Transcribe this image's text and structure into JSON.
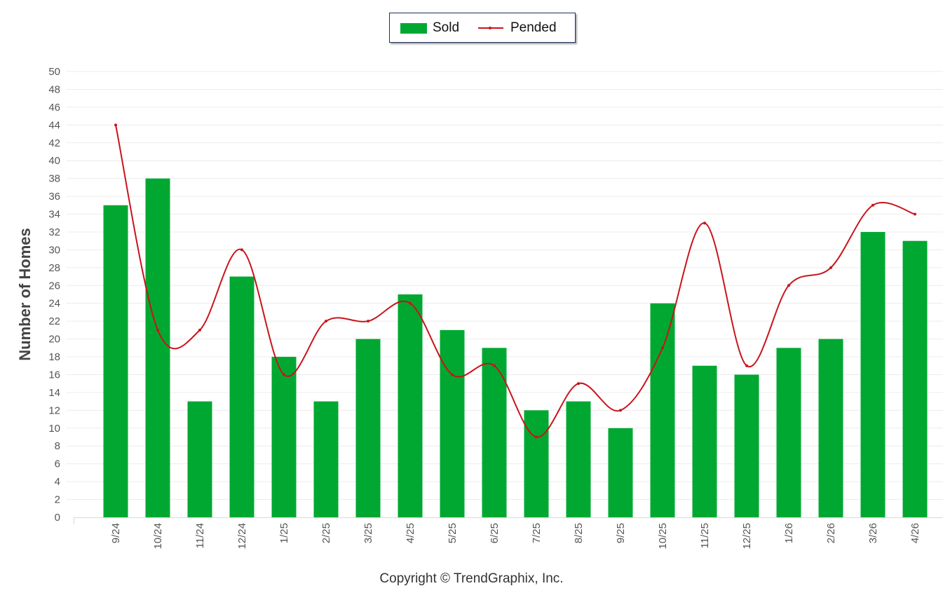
{
  "legend": {
    "sold_label": "Sold",
    "pended_label": "Pended"
  },
  "copyright": "Copyright © TrendGraphix, Inc.",
  "chart_data": {
    "type": "bar",
    "categories": [
      "9/24",
      "10/24",
      "11/24",
      "12/24",
      "1/25",
      "2/25",
      "3/25",
      "4/25",
      "5/25",
      "6/25",
      "7/25",
      "8/25",
      "9/25",
      "10/25",
      "11/25",
      "12/25",
      "1/26",
      "2/26",
      "3/26",
      "4/26"
    ],
    "series": [
      {
        "name": "Sold",
        "type": "bar",
        "color": "#00a832",
        "values": [
          35,
          38,
          13,
          27,
          18,
          13,
          20,
          25,
          21,
          19,
          12,
          13,
          10,
          24,
          17,
          16,
          19,
          20,
          32,
          31
        ]
      },
      {
        "name": "Pended",
        "type": "line",
        "color": "#c8141b",
        "values": [
          44,
          21,
          21,
          30,
          16,
          22,
          22,
          24,
          16,
          17,
          9,
          15,
          12,
          19,
          33,
          17,
          26,
          28,
          35,
          34
        ]
      }
    ],
    "ylabel": "Number of Homes",
    "xlabel": "",
    "ylim": [
      0,
      50
    ],
    "yticks": [
      0,
      2,
      4,
      6,
      8,
      10,
      12,
      14,
      16,
      18,
      20,
      22,
      24,
      26,
      28,
      30,
      32,
      34,
      36,
      38,
      40,
      42,
      44,
      46,
      48,
      50
    ],
    "grid": true,
    "legend_position": "top-center"
  }
}
